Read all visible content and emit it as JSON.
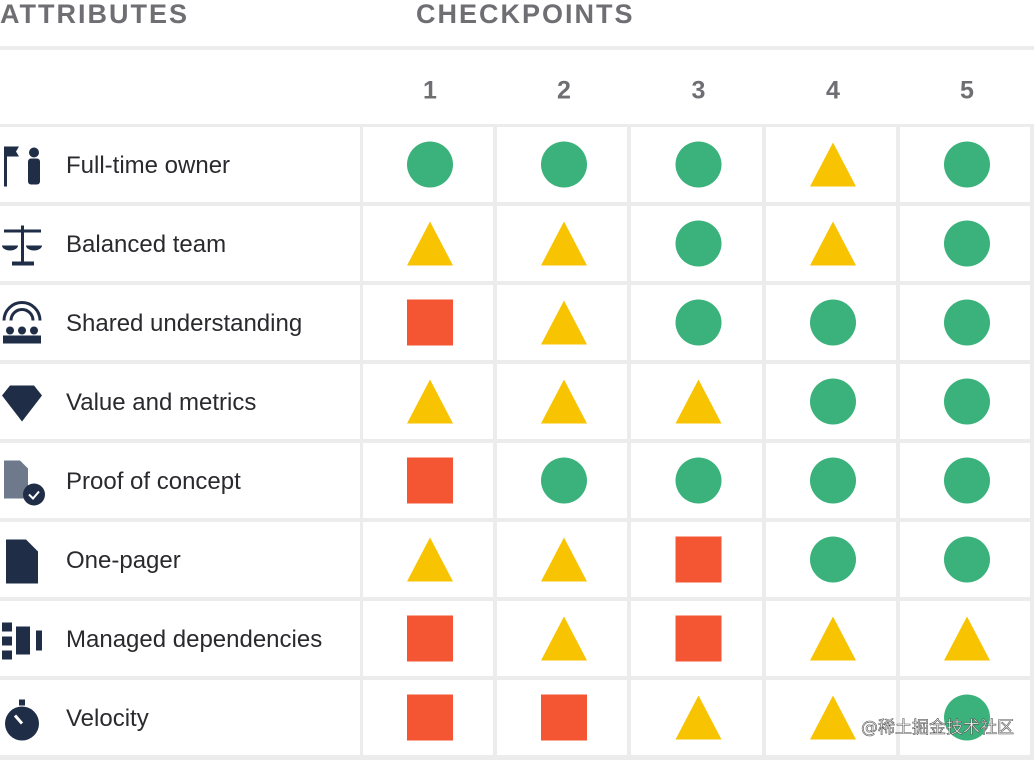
{
  "header": {
    "attributes": "ATTRIBUTES",
    "checkpoints": "CHECKPOINTS"
  },
  "columns": [
    "1",
    "2",
    "3",
    "4",
    "5"
  ],
  "colors": {
    "circle": "#3bb27b",
    "triangle": "#f8c300",
    "square": "#f45532"
  },
  "rows": [
    {
      "label": "Full-time owner",
      "marks": [
        "circle",
        "circle",
        "circle",
        "triangle",
        "circle"
      ]
    },
    {
      "label": "Balanced team",
      "marks": [
        "triangle",
        "triangle",
        "circle",
        "triangle",
        "circle"
      ]
    },
    {
      "label": "Shared understanding",
      "marks": [
        "square",
        "triangle",
        "circle",
        "circle",
        "circle"
      ]
    },
    {
      "label": "Value and metrics",
      "marks": [
        "triangle",
        "triangle",
        "triangle",
        "circle",
        "circle"
      ]
    },
    {
      "label": "Proof of concept",
      "marks": [
        "square",
        "circle",
        "circle",
        "circle",
        "circle"
      ]
    },
    {
      "label": "One-pager",
      "marks": [
        "triangle",
        "triangle",
        "square",
        "circle",
        "circle"
      ]
    },
    {
      "label": "Managed dependencies",
      "marks": [
        "square",
        "triangle",
        "square",
        "triangle",
        "triangle"
      ]
    },
    {
      "label": "Velocity",
      "marks": [
        "square",
        "square",
        "triangle",
        "triangle",
        "circle"
      ]
    }
  ],
  "watermark": "@稀土掘金技术社区"
}
